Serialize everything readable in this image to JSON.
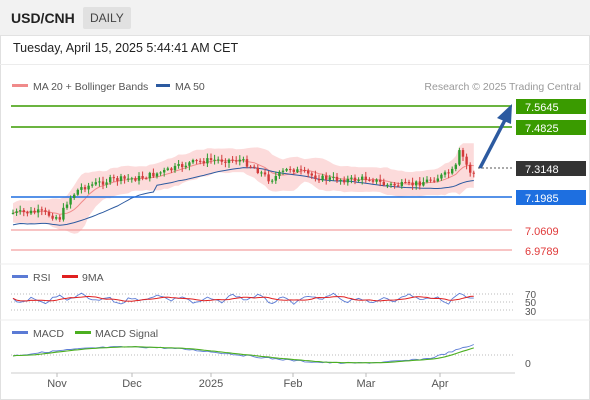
{
  "header": {
    "symbol": "USD/CNH",
    "timeframe": "DAILY",
    "datetime": "Tuesday, April 15, 2025 5:44:41 AM CET"
  },
  "legend": {
    "bollinger": {
      "label": "MA 20 + Bollinger Bands",
      "color": "#f08a8a"
    },
    "ma50": {
      "label": "MA 50",
      "color": "#2c5aa0"
    },
    "credit": "Research © 2025 Trading Central"
  },
  "price_levels": [
    {
      "value": "7.5645",
      "color": "#3a9b00",
      "kind": "resistance"
    },
    {
      "value": "7.4825",
      "color": "#3a9b00",
      "kind": "resistance"
    },
    {
      "value": "7.3148",
      "color": "#333333",
      "kind": "last-price"
    },
    {
      "value": "7.1985",
      "color": "#1e6fe0",
      "kind": "pivot"
    },
    {
      "value": "7.0609",
      "color": "#e05a5a",
      "kind": "support"
    },
    {
      "value": "6.9789",
      "color": "#e05a5a",
      "kind": "support"
    }
  ],
  "rsi": {
    "legend": [
      {
        "label": "RSI",
        "color": "#5b7bd5"
      },
      {
        "label": "9MA",
        "color": "#e02020"
      }
    ],
    "levels": [
      "70",
      "50",
      "30"
    ]
  },
  "macd": {
    "legend": [
      {
        "label": "MACD",
        "color": "#5b7bd5"
      },
      {
        "label": "MACD Signal",
        "color": "#4caf20"
      }
    ],
    "levels": [
      "0"
    ]
  },
  "x_axis": [
    "Nov",
    "Dec",
    "2025",
    "Feb",
    "Mar",
    "Apr"
  ],
  "colors": {
    "up_candle": "#2e9b2e",
    "down_candle": "#d23b3b",
    "band_fill": "#fbd5d5",
    "arrow": "#2c5aa0"
  }
}
